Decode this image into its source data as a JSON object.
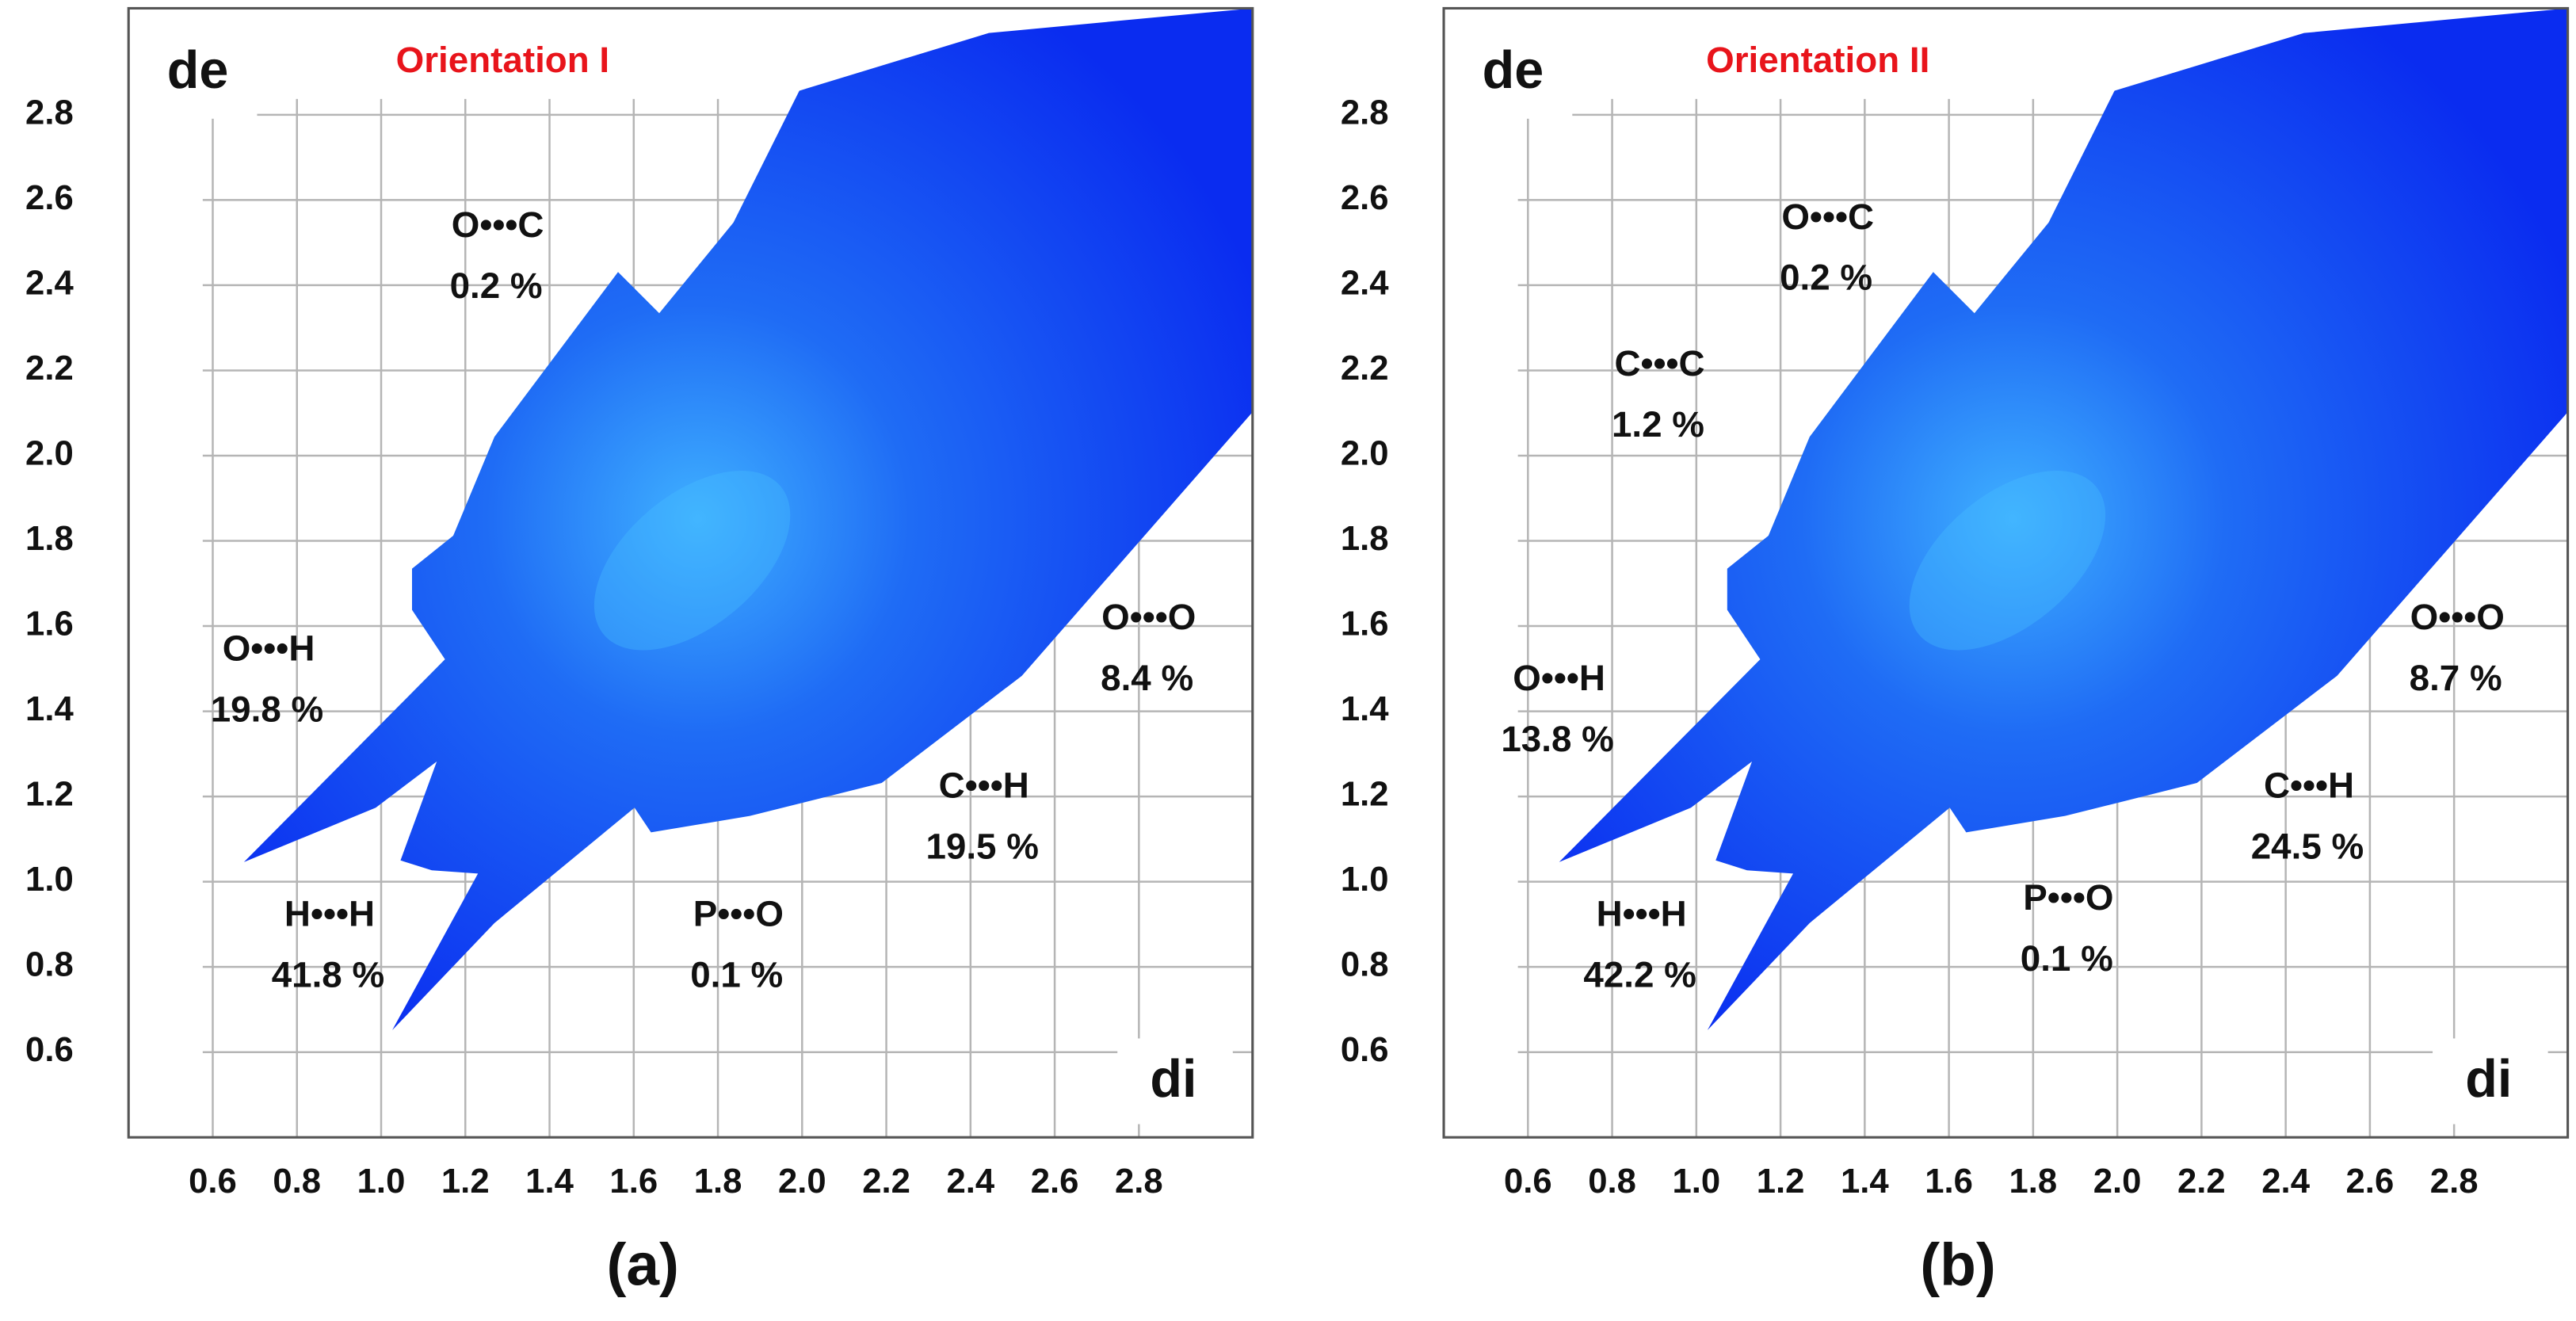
{
  "chart_data": [
    {
      "type": "fingerprint",
      "title": "Orientation I",
      "caption": "(a)",
      "xlabel": "di",
      "ylabel": "de",
      "xlim": [
        0.4,
        3.07
      ],
      "ylim": [
        0.4,
        3.05
      ],
      "xticks": [
        0.6,
        0.8,
        {
          "value": 1,
          "label": "1.0"
        },
        1.2,
        1.4,
        1.6,
        1.8,
        {
          "value": 2,
          "label": "2.0"
        },
        2.2,
        2.4,
        2.6,
        2.8
      ],
      "yticks": [
        0.6,
        0.8,
        {
          "value": 1,
          "label": "1.0"
        },
        1.2,
        1.4,
        1.6,
        1.8,
        {
          "value": 2,
          "label": "2.0"
        },
        2.2,
        2.4,
        2.6,
        2.8
      ],
      "grid": true,
      "annotations": [
        {
          "text": "O•••C",
          "value": "0.2 %"
        },
        {
          "text": "O•••H",
          "value": "19.8 %"
        },
        {
          "text": "H•••H",
          "value": "41.8 %"
        },
        {
          "text": "P•••O",
          "value": "0.1 %"
        },
        {
          "text": "C•••H",
          "value": "19.5 %"
        },
        {
          "text": "O•••O",
          "value": "8.4 %"
        }
      ]
    },
    {
      "type": "fingerprint",
      "title": "Orientation II",
      "caption": "(b)",
      "xlabel": "di",
      "ylabel": "de",
      "xlim": [
        0.4,
        3.07
      ],
      "ylim": [
        0.4,
        3.05
      ],
      "xticks": [
        0.6,
        0.8,
        {
          "value": 1,
          "label": "1.0"
        },
        1.2,
        1.4,
        1.6,
        1.8,
        {
          "value": 2,
          "label": "2.0"
        },
        2.2,
        2.4,
        2.6,
        2.8
      ],
      "yticks": [
        0.6,
        0.8,
        {
          "value": 1,
          "label": "1.0"
        },
        1.2,
        1.4,
        1.6,
        1.8,
        {
          "value": 2,
          "label": "2.0"
        },
        2.2,
        2.4,
        2.6,
        2.8
      ],
      "grid": true,
      "annotations": [
        {
          "text": "O•••C",
          "value": "0.2 %"
        },
        {
          "text": "C•••C",
          "value": "1.2 %"
        },
        {
          "text": "O•••H",
          "value": "13.8 %"
        },
        {
          "text": "H•••H",
          "value": "42.2 %"
        },
        {
          "text": "P•••O",
          "value": "0.1 %"
        },
        {
          "text": "C•••H",
          "value": "24.5 %"
        },
        {
          "text": "O•••O",
          "value": "8.7 %"
        }
      ]
    }
  ]
}
